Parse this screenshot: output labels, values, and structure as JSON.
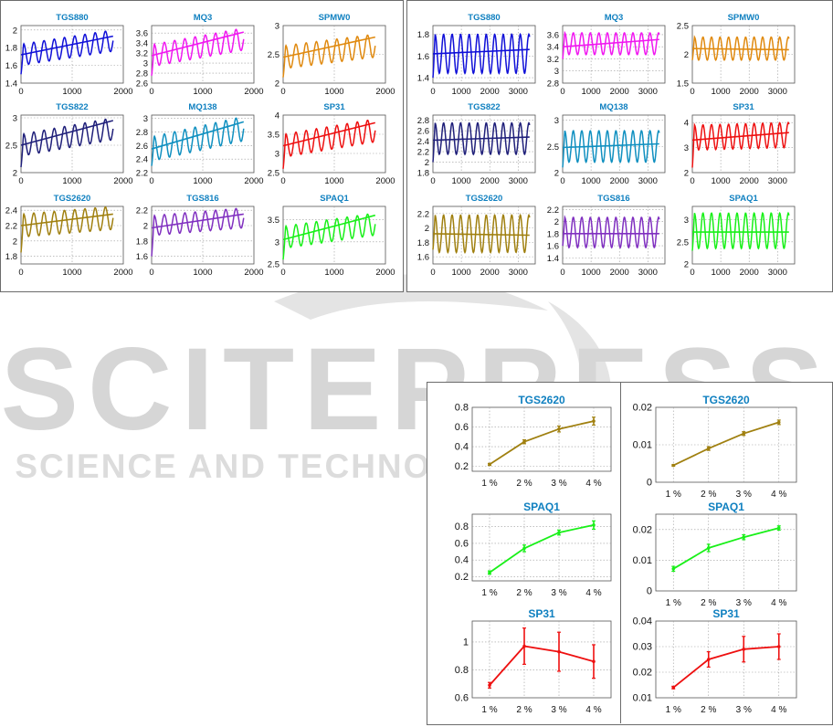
{
  "watermark": {
    "line1": "SCITEPRESS",
    "line2": "SCIENCE AND TECHNOLOGY PUBLICATIONS",
    "color": "#d3d3d3"
  },
  "colors": {
    "blue": "#1010d8",
    "magenta": "#f018f0",
    "orange": "#e08a10",
    "navy": "#20207a",
    "teal": "#1090c0",
    "red": "#ee1010",
    "olive": "#a08010",
    "purple": "#8030c0",
    "green": "#18f018",
    "title": "#1080c0",
    "grid": "#9a9a9a"
  },
  "chart_data": [
    {
      "id": "L-TGS880",
      "type": "line",
      "title": "TGS880",
      "color": "blue",
      "x_ticks": [
        "0",
        "1000",
        "2000"
      ],
      "y_ticks": [
        "1.4",
        "1.6",
        "1.8",
        "2"
      ],
      "xlim": [
        0,
        2000
      ],
      "ylim": [
        1.4,
        2.05
      ],
      "grid": true,
      "osc": {
        "period": 200,
        "amp": 0.12,
        "trend": [
          1.72,
          1.88
        ],
        "xmax": 1800,
        "start": 1.5
      },
      "trend_line": {
        "x": [
          0,
          1800
        ],
        "y": [
          1.72,
          1.93
        ]
      }
    },
    {
      "id": "L-MQ3",
      "type": "line",
      "title": "MQ3",
      "color": "magenta",
      "x_ticks": [
        "0",
        "1000",
        "2000"
      ],
      "y_ticks": [
        "2.6",
        "2.8",
        "3",
        "3.2",
        "3.4",
        "3.6"
      ],
      "xlim": [
        0,
        2000
      ],
      "ylim": [
        2.6,
        3.75
      ],
      "grid": true,
      "osc": {
        "period": 200,
        "amp": 0.22,
        "trend": [
          3.15,
          3.48
        ],
        "xmax": 1800,
        "start": 2.75
      },
      "trend_line": {
        "x": [
          0,
          1800
        ],
        "y": [
          3.15,
          3.62
        ]
      }
    },
    {
      "id": "L-SPMW0",
      "type": "line",
      "title": "SPMW0",
      "color": "orange",
      "x_ticks": [
        "0",
        "1000",
        "2000"
      ],
      "y_ticks": [
        "2",
        "2.5",
        "3"
      ],
      "xlim": [
        0,
        2000
      ],
      "ylim": [
        2,
        3
      ],
      "grid": true,
      "osc": {
        "period": 200,
        "amp": 0.2,
        "trend": [
          2.45,
          2.65
        ],
        "xmax": 1800,
        "start": 2.1
      },
      "trend_line": {
        "x": [
          0,
          1800
        ],
        "y": [
          2.45,
          2.8
        ]
      }
    },
    {
      "id": "L-TGS822",
      "type": "line",
      "title": "TGS822",
      "color": "navy",
      "x_ticks": [
        "0",
        "1000",
        "2000"
      ],
      "y_ticks": [
        "2",
        "2.5",
        "3"
      ],
      "xlim": [
        0,
        2000
      ],
      "ylim": [
        2,
        3.05
      ],
      "grid": true,
      "osc": {
        "period": 200,
        "amp": 0.2,
        "trend": [
          2.5,
          2.8
        ],
        "xmax": 1800,
        "start": 2.1
      },
      "trend_line": {
        "x": [
          0,
          1800
        ],
        "y": [
          2.5,
          2.95
        ]
      }
    },
    {
      "id": "L-MQ138",
      "type": "line",
      "title": "MQ138",
      "color": "teal",
      "x_ticks": [
        "0",
        "1000",
        "2000"
      ],
      "y_ticks": [
        "2.2",
        "2.4",
        "2.6",
        "2.8",
        "3"
      ],
      "xlim": [
        0,
        2000
      ],
      "ylim": [
        2.2,
        3.05
      ],
      "grid": true,
      "osc": {
        "period": 200,
        "amp": 0.18,
        "trend": [
          2.55,
          2.85
        ],
        "xmax": 1800,
        "start": 2.3
      },
      "trend_line": {
        "x": [
          0,
          1800
        ],
        "y": [
          2.55,
          2.95
        ]
      }
    },
    {
      "id": "L-SP31",
      "type": "line",
      "title": "SP31",
      "color": "red",
      "x_ticks": [
        "0",
        "1000",
        "2000"
      ],
      "y_ticks": [
        "2.5",
        "3",
        "3.5",
        "4"
      ],
      "xlim": [
        0,
        2000
      ],
      "ylim": [
        2.5,
        4
      ],
      "grid": true,
      "osc": {
        "period": 200,
        "amp": 0.3,
        "trend": [
          3.2,
          3.6
        ],
        "xmax": 1800,
        "start": 2.6
      },
      "trend_line": {
        "x": [
          0,
          1800
        ],
        "y": [
          3.2,
          3.8
        ]
      }
    },
    {
      "id": "L-TGS2620",
      "type": "line",
      "title": "TGS2620",
      "color": "olive",
      "x_ticks": [
        "0",
        "1000",
        "2000"
      ],
      "y_ticks": [
        "1.8",
        "2",
        "2.2",
        "2.4"
      ],
      "xlim": [
        0,
        2000
      ],
      "ylim": [
        1.7,
        2.45
      ],
      "grid": true,
      "osc": {
        "period": 200,
        "amp": 0.15,
        "trend": [
          2.2,
          2.3
        ],
        "xmax": 1800,
        "start": 1.85
      },
      "trend_line": {
        "x": [
          0,
          1800
        ],
        "y": [
          2.2,
          2.35
        ]
      }
    },
    {
      "id": "L-TGS816",
      "type": "line",
      "title": "TGS816",
      "color": "purple",
      "x_ticks": [
        "0",
        "1000",
        "2000"
      ],
      "y_ticks": [
        "1.6",
        "1.8",
        "2",
        "2.2"
      ],
      "xlim": [
        0,
        2000
      ],
      "ylim": [
        1.5,
        2.25
      ],
      "grid": true,
      "osc": {
        "period": 200,
        "amp": 0.13,
        "trend": [
          2.0,
          2.1
        ],
        "xmax": 1800,
        "start": 1.6
      },
      "trend_line": {
        "x": [
          0,
          1800
        ],
        "y": [
          1.97,
          2.15
        ]
      }
    },
    {
      "id": "L-SPAQ1",
      "type": "line",
      "title": "SPAQ1",
      "color": "green",
      "x_ticks": [
        "0",
        "1000",
        "2000"
      ],
      "y_ticks": [
        "2.5",
        "3",
        "3.5"
      ],
      "xlim": [
        0,
        2000
      ],
      "ylim": [
        2.5,
        3.8
      ],
      "grid": true,
      "osc": {
        "period": 200,
        "amp": 0.25,
        "trend": [
          3.1,
          3.4
        ],
        "xmax": 1800,
        "start": 2.6
      },
      "trend_line": {
        "x": [
          0,
          1800
        ],
        "y": [
          3.05,
          3.6
        ]
      }
    },
    {
      "id": "R-TGS880",
      "type": "line",
      "title": "TGS880",
      "color": "blue",
      "x_ticks": [
        "0",
        "1000",
        "2000",
        "3000"
      ],
      "y_ticks": [
        "1.4",
        "1.6",
        "1.8"
      ],
      "xlim": [
        0,
        3600
      ],
      "ylim": [
        1.35,
        1.88
      ],
      "grid": true,
      "osc": {
        "period": 300,
        "amp": 0.18,
        "trend": [
          1.62,
          1.62
        ],
        "xmax": 3400,
        "start": 1.4
      },
      "trend_line": {
        "x": [
          0,
          3400
        ],
        "y": [
          1.62,
          1.66
        ]
      }
    },
    {
      "id": "R-MQ3",
      "type": "line",
      "title": "MQ3",
      "color": "magenta",
      "x_ticks": [
        "0",
        "1000",
        "2000",
        "3000"
      ],
      "y_ticks": [
        "2.8",
        "3",
        "3.2",
        "3.4",
        "3.6"
      ],
      "xlim": [
        0,
        3600
      ],
      "ylim": [
        2.8,
        3.75
      ],
      "grid": true,
      "osc": {
        "period": 300,
        "amp": 0.18,
        "trend": [
          3.45,
          3.45
        ],
        "xmax": 3400,
        "start": 3.2
      },
      "trend_line": {
        "x": [
          0,
          3400
        ],
        "y": [
          3.4,
          3.52
        ]
      }
    },
    {
      "id": "R-SPMW0",
      "type": "line",
      "title": "SPMW0",
      "color": "orange",
      "x_ticks": [
        "0",
        "1000",
        "2000",
        "3000"
      ],
      "y_ticks": [
        "1.5",
        "2",
        "2.5"
      ],
      "xlim": [
        0,
        3600
      ],
      "ylim": [
        1.5,
        2.5
      ],
      "grid": true,
      "osc": {
        "period": 300,
        "amp": 0.2,
        "trend": [
          2.1,
          2.1
        ],
        "xmax": 3400,
        "start": 1.9
      },
      "trend_line": {
        "x": [
          0,
          3400
        ],
        "y": [
          2.1,
          2.08
        ]
      }
    },
    {
      "id": "R-TGS822",
      "type": "line",
      "title": "TGS822",
      "color": "navy",
      "x_ticks": [
        "0",
        "1000",
        "2000",
        "3000"
      ],
      "y_ticks": [
        "1.8",
        "2",
        "2.2",
        "2.4",
        "2.6",
        "2.8"
      ],
      "xlim": [
        0,
        3600
      ],
      "ylim": [
        1.8,
        2.9
      ],
      "grid": true,
      "osc": {
        "period": 300,
        "amp": 0.3,
        "trend": [
          2.45,
          2.45
        ],
        "xmax": 3400,
        "start": 2.0
      },
      "trend_line": {
        "x": [
          0,
          3400
        ],
        "y": [
          2.42,
          2.48
        ]
      }
    },
    {
      "id": "R-MQ138",
      "type": "line",
      "title": "MQ138",
      "color": "teal",
      "x_ticks": [
        "0",
        "1000",
        "2000",
        "3000"
      ],
      "y_ticks": [
        "2",
        "2.5",
        "3"
      ],
      "xlim": [
        0,
        3600
      ],
      "ylim": [
        2,
        3.1
      ],
      "grid": true,
      "osc": {
        "period": 300,
        "amp": 0.3,
        "trend": [
          2.5,
          2.5
        ],
        "xmax": 3400,
        "start": 2.1
      },
      "trend_line": {
        "x": [
          0,
          3400
        ],
        "y": [
          2.48,
          2.55
        ]
      }
    },
    {
      "id": "R-SP31",
      "type": "line",
      "title": "SP31",
      "color": "red",
      "x_ticks": [
        "0",
        "1000",
        "2000",
        "3000"
      ],
      "y_ticks": [
        "2",
        "3",
        "4"
      ],
      "xlim": [
        0,
        3600
      ],
      "ylim": [
        2,
        4.3
      ],
      "grid": true,
      "osc": {
        "period": 300,
        "amp": 0.5,
        "trend": [
          3.4,
          3.5
        ],
        "xmax": 3400,
        "start": 2.2
      },
      "trend_line": {
        "x": [
          0,
          3400
        ],
        "y": [
          3.3,
          3.6
        ]
      }
    },
    {
      "id": "R-TGS2620",
      "type": "line",
      "title": "TGS2620",
      "color": "olive",
      "x_ticks": [
        "0",
        "1000",
        "2000",
        "3000"
      ],
      "y_ticks": [
        "1.6",
        "1.8",
        "2",
        "2.2"
      ],
      "xlim": [
        0,
        3600
      ],
      "ylim": [
        1.5,
        2.3
      ],
      "grid": true,
      "osc": {
        "period": 300,
        "amp": 0.26,
        "trend": [
          1.92,
          1.92
        ],
        "xmax": 3400,
        "start": 1.7
      },
      "trend_line": {
        "x": [
          0,
          3400
        ],
        "y": [
          1.92,
          1.9
        ]
      }
    },
    {
      "id": "R-TGS816",
      "type": "line",
      "title": "TGS816",
      "color": "purple",
      "x_ticks": [
        "0",
        "1000",
        "2000",
        "3000"
      ],
      "y_ticks": [
        "1.4",
        "1.6",
        "1.8",
        "2",
        "2.2"
      ],
      "xlim": [
        0,
        3600
      ],
      "ylim": [
        1.3,
        2.25
      ],
      "grid": true,
      "osc": {
        "period": 300,
        "amp": 0.25,
        "trend": [
          1.82,
          1.82
        ],
        "xmax": 3400,
        "start": 1.6
      },
      "trend_line": {
        "x": [
          0,
          3400
        ],
        "y": [
          1.8,
          1.8
        ]
      }
    },
    {
      "id": "R-SPAQ1",
      "type": "line",
      "title": "SPAQ1",
      "color": "green",
      "x_ticks": [
        "0",
        "1000",
        "2000",
        "3000"
      ],
      "y_ticks": [
        "2",
        "2.5",
        "3"
      ],
      "xlim": [
        0,
        3600
      ],
      "ylim": [
        2,
        3.3
      ],
      "grid": true,
      "osc": {
        "period": 300,
        "amp": 0.4,
        "trend": [
          2.75,
          2.75
        ],
        "xmax": 3400,
        "start": 2.3
      },
      "trend_line": {
        "x": [
          0,
          3400
        ],
        "y": [
          2.72,
          2.72
        ]
      }
    },
    {
      "id": "B1-TGS2620",
      "type": "line",
      "title": "TGS2620",
      "color": "olive",
      "categories": [
        "1 %",
        "2 %",
        "3 %",
        "4 %"
      ],
      "values": [
        0.22,
        0.45,
        0.58,
        0.66
      ],
      "errors": [
        0.01,
        0.02,
        0.03,
        0.04
      ],
      "y_ticks": [
        "0.2",
        "0.4",
        "0.6",
        "0.8"
      ],
      "ylim": [
        0.15,
        0.8
      ],
      "grid": true
    },
    {
      "id": "B1-SPAQ1",
      "type": "line",
      "title": "SPAQ1",
      "color": "green",
      "categories": [
        "1 %",
        "2 %",
        "3 %",
        "4 %"
      ],
      "values": [
        0.25,
        0.54,
        0.73,
        0.82
      ],
      "errors": [
        0.02,
        0.04,
        0.03,
        0.05
      ],
      "y_ticks": [
        "0.2",
        "0.4",
        "0.6",
        "0.8"
      ],
      "ylim": [
        0.15,
        0.95
      ],
      "grid": true
    },
    {
      "id": "B1-SP31",
      "type": "line",
      "title": "SP31",
      "color": "red",
      "categories": [
        "1 %",
        "2 %",
        "3 %",
        "4 %"
      ],
      "values": [
        0.69,
        0.97,
        0.93,
        0.86
      ],
      "errors": [
        0.02,
        0.13,
        0.14,
        0.12
      ],
      "y_ticks": [
        "0.6",
        "0.8",
        "1"
      ],
      "ylim": [
        0.6,
        1.15
      ],
      "grid": true
    },
    {
      "id": "B2-TGS2620",
      "type": "line",
      "title": "TGS2620",
      "color": "olive",
      "categories": [
        "1 %",
        "2 %",
        "3 %",
        "4 %"
      ],
      "values": [
        0.0045,
        0.009,
        0.013,
        0.016
      ],
      "errors": [
        0.0002,
        0.0005,
        0.0005,
        0.0006
      ],
      "y_ticks": [
        "0",
        "0.01",
        "0.02"
      ],
      "ylim": [
        0,
        0.02
      ],
      "grid": true
    },
    {
      "id": "B2-SPAQ1",
      "type": "line",
      "title": "SPAQ1",
      "color": "green",
      "categories": [
        "1 %",
        "2 %",
        "3 %",
        "4 %"
      ],
      "values": [
        0.0072,
        0.014,
        0.0175,
        0.0205
      ],
      "errors": [
        0.0008,
        0.0012,
        0.0008,
        0.0007
      ],
      "y_ticks": [
        "0",
        "0.01",
        "0.02"
      ],
      "ylim": [
        0,
        0.025
      ],
      "grid": true
    },
    {
      "id": "B2-SP31",
      "type": "line",
      "title": "SP31",
      "color": "red",
      "categories": [
        "1 %",
        "2 %",
        "3 %",
        "4 %"
      ],
      "values": [
        0.014,
        0.025,
        0.029,
        0.03
      ],
      "errors": [
        0.0005,
        0.003,
        0.005,
        0.005
      ],
      "y_ticks": [
        "0.01",
        "0.02",
        "0.03",
        "0.04"
      ],
      "ylim": [
        0.01,
        0.04
      ],
      "grid": true
    }
  ]
}
